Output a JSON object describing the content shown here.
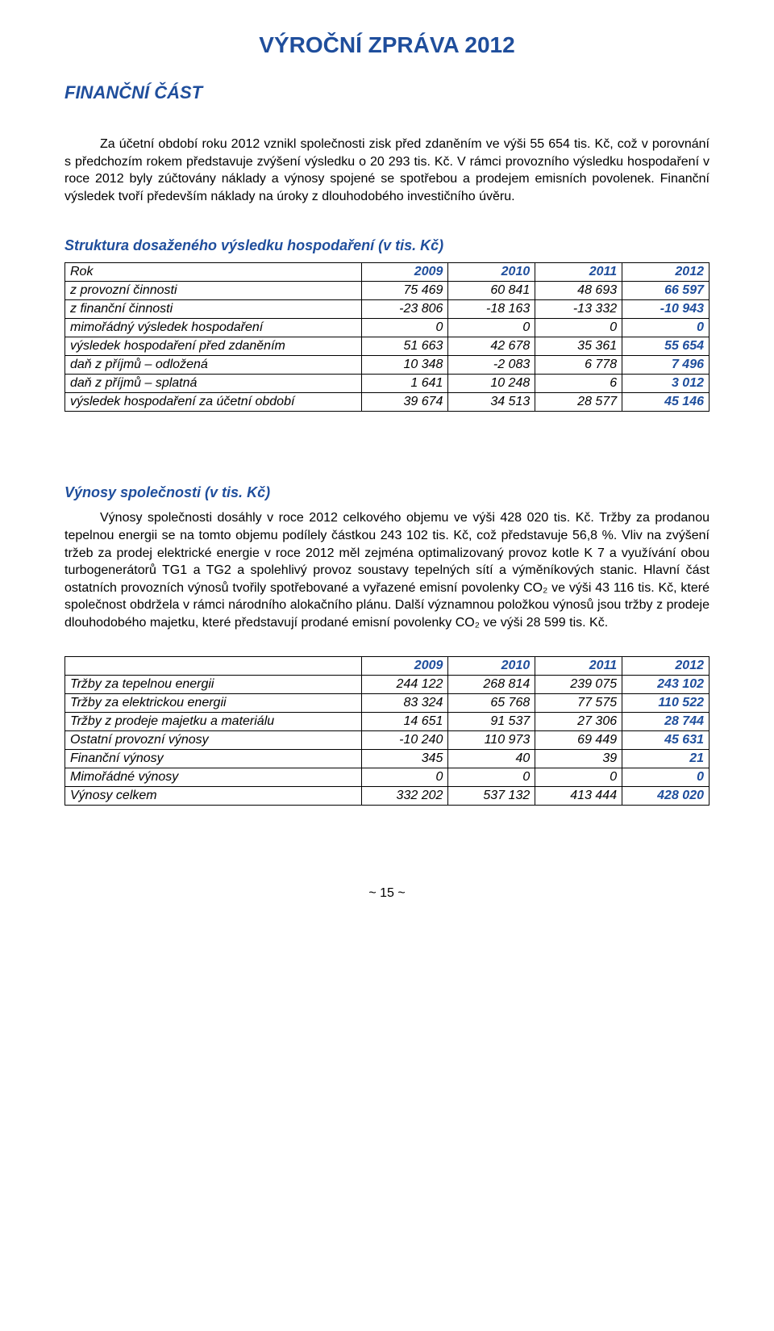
{
  "doc_title": "VÝROČNÍ ZPRÁVA 2012",
  "section_heading": "FINANČNÍ ČÁST",
  "intro_paragraph": "Za účetní období roku 2012 vznikl společnosti zisk před zdaněním ve výši      55 654 tis. Kč, což v porovnání s předchozím rokem představuje zvýšení výsledku o 20 293 tis. Kč.  V rámci provozního výsledku hospodaření v roce 2012 byly zúčtovány náklady a výnosy spojené se spotřebou a prodejem emisních povolenek. Finanční výsledek tvoří především náklady na úroky z dlouhodobého investičního úvěru.",
  "table1": {
    "heading": "Struktura dosaženého výsledku hospodaření (v tis. Kč)",
    "columns": [
      "Rok",
      "2009",
      "2010",
      "2011",
      "2012"
    ],
    "rows": [
      [
        "z provozní činnosti",
        "75 469",
        "60 841",
        "48 693",
        "66 597"
      ],
      [
        "z finanční činnosti",
        "-23 806",
        "-18 163",
        "-13 332",
        "-10 943"
      ],
      [
        "mimořádný výsledek hospodaření",
        "0",
        "0",
        "0",
        "0"
      ],
      [
        "výsledek hospodaření před zdaněním",
        "51 663",
        "42 678",
        "35 361",
        "55 654"
      ],
      [
        "daň z příjmů – odložená",
        "10 348",
        "-2 083",
        "6 778",
        "7 496"
      ],
      [
        "daň z příjmů – splatná",
        "1 641",
        "10 248",
        "6",
        "3 012"
      ],
      [
        "výsledek hospodaření za účetní období",
        "39 674",
        "34 513",
        "28 577",
        "45 146"
      ]
    ],
    "col_widths": [
      "46%",
      "13.5%",
      "13.5%",
      "13.5%",
      "13.5%"
    ]
  },
  "section2": {
    "heading": "Výnosy společnosti (v tis. Kč)",
    "paragraph": "Výnosy společnosti dosáhly v roce 2012 celkového objemu ve výši 428 020 tis. Kč. Tržby za prodanou tepelnou energii se na tomto objemu podílely částkou 243 102 tis. Kč, což představuje 56,8 %. Vliv na zvýšení tržeb za prodej elektrické energie v roce 2012 měl zejména optimalizovaný provoz kotle K 7 a využívání obou turbogenerátorů TG1 a TG2 a spolehlivý provoz soustavy tepelných sítí a výměníkových stanic. Hlavní část ostatních provozních výnosů tvořily spotřebované a vyřazené emisní povolenky CO₂ ve výši          43 116 tis. Kč, které společnost obdržela v rámci národního alokačního plánu. Další významnou položkou výnosů jsou tržby z prodeje dlouhodobého majetku, které představují prodané emisní povolenky CO₂ ve výši 28 599 tis. Kč."
  },
  "table2": {
    "columns": [
      "",
      "2009",
      "2010",
      "2011",
      "2012"
    ],
    "rows": [
      [
        "Tržby za tepelnou energii",
        "244 122",
        "268 814",
        "239 075",
        "243 102"
      ],
      [
        "Tržby za elektrickou energii",
        "83 324",
        "65 768",
        "77 575",
        "110 522"
      ],
      [
        "Tržby z prodeje majetku a materiálu",
        "14 651",
        "91 537",
        "27 306",
        "28 744"
      ],
      [
        "Ostatní provozní výnosy",
        "-10 240",
        "110 973",
        "69 449",
        "45 631"
      ],
      [
        "Finanční výnosy",
        "345",
        "40",
        "39",
        "21"
      ],
      [
        "Mimořádné výnosy",
        "0",
        "0",
        "0",
        "0"
      ],
      [
        "Výnosy celkem",
        "332 202",
        "537 132",
        "413 444",
        "428 020"
      ]
    ],
    "col_widths": [
      "46%",
      "13.5%",
      "13.5%",
      "13.5%",
      "13.5%"
    ]
  },
  "page_number": "~ 15 ~",
  "colors": {
    "brand_blue": "#1f4e9c",
    "text": "#000000",
    "border": "#000000",
    "background": "#ffffff"
  }
}
